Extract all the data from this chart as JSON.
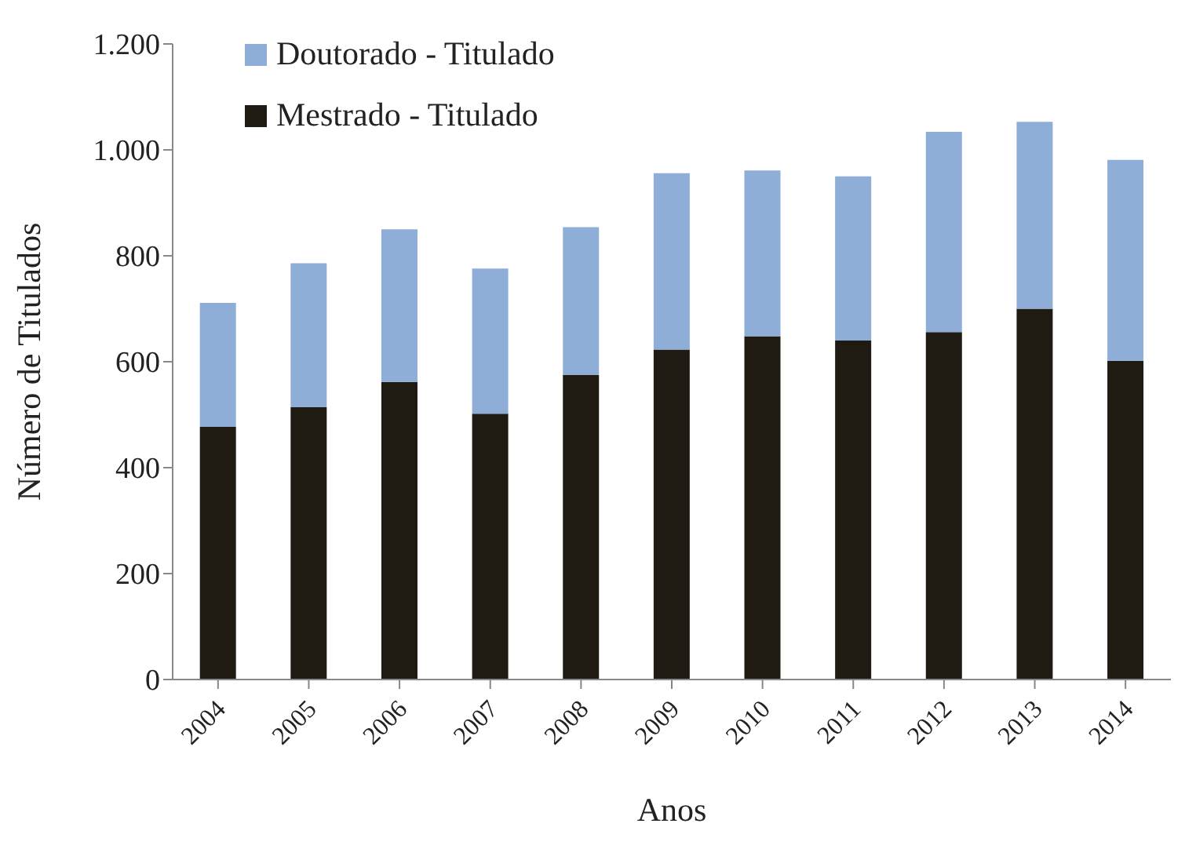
{
  "chart_data": {
    "type": "bar",
    "stacked": true,
    "xlabel": "Anos",
    "ylabel": "Número de Titulados",
    "categories": [
      "2004",
      "2005",
      "2006",
      "2007",
      "2008",
      "2009",
      "2010",
      "2011",
      "2012",
      "2013",
      "2014"
    ],
    "series": [
      {
        "name": "Mestrado - Titulado",
        "color": "#1f1a12",
        "values": [
          477,
          514,
          562,
          502,
          575,
          623,
          648,
          640,
          656,
          700,
          602
        ]
      },
      {
        "name": "Doutorado - Titulado",
        "color": "#8eaed8",
        "values": [
          234,
          272,
          288,
          274,
          279,
          333,
          313,
          310,
          378,
          353,
          379
        ]
      }
    ],
    "ylim": [
      0,
      1200
    ],
    "yticks": [
      0,
      200,
      400,
      600,
      800,
      {
        "value": 1000,
        "label": "1.000"
      },
      {
        "value": 1200,
        "label": "1.200"
      }
    ],
    "grid": false,
    "legend": "top left"
  }
}
